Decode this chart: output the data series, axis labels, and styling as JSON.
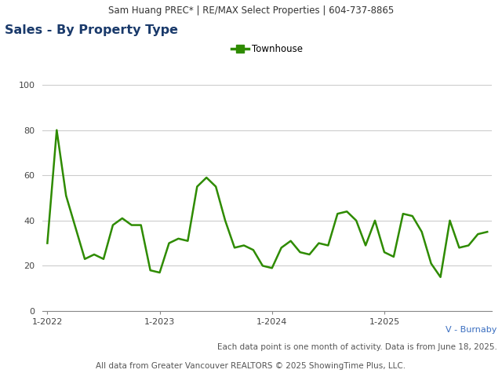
{
  "header_text": "Sam Huang PREC* | RE/MAX Select Properties | 604-737-8865",
  "title": "Sales - By Property Type",
  "legend_label": "Townhouse",
  "footer1": "V - Burnaby",
  "footer2": "Each data point is one month of activity. Data is from June 18, 2025.",
  "footer3": "All data from Greater Vancouver REALTORS © 2025 ShowingTime Plus, LLC.",
  "line_color": "#2e8b00",
  "header_bg": "#e0e0e0",
  "ylim": [
    0,
    100
  ],
  "yticks": [
    0,
    20,
    40,
    60,
    80,
    100
  ],
  "xtick_labels": [
    "1-2022",
    "1-2023",
    "1-2024",
    "1-2025"
  ],
  "values": [
    30,
    80,
    51,
    37,
    23,
    25,
    23,
    38,
    41,
    38,
    38,
    18,
    17,
    30,
    32,
    31,
    55,
    59,
    55,
    40,
    28,
    29,
    27,
    20,
    19,
    28,
    31,
    26,
    25,
    30,
    29,
    43,
    44,
    40,
    29,
    40,
    26,
    24,
    43,
    42,
    35,
    21,
    15,
    40,
    28,
    29,
    34,
    35
  ]
}
